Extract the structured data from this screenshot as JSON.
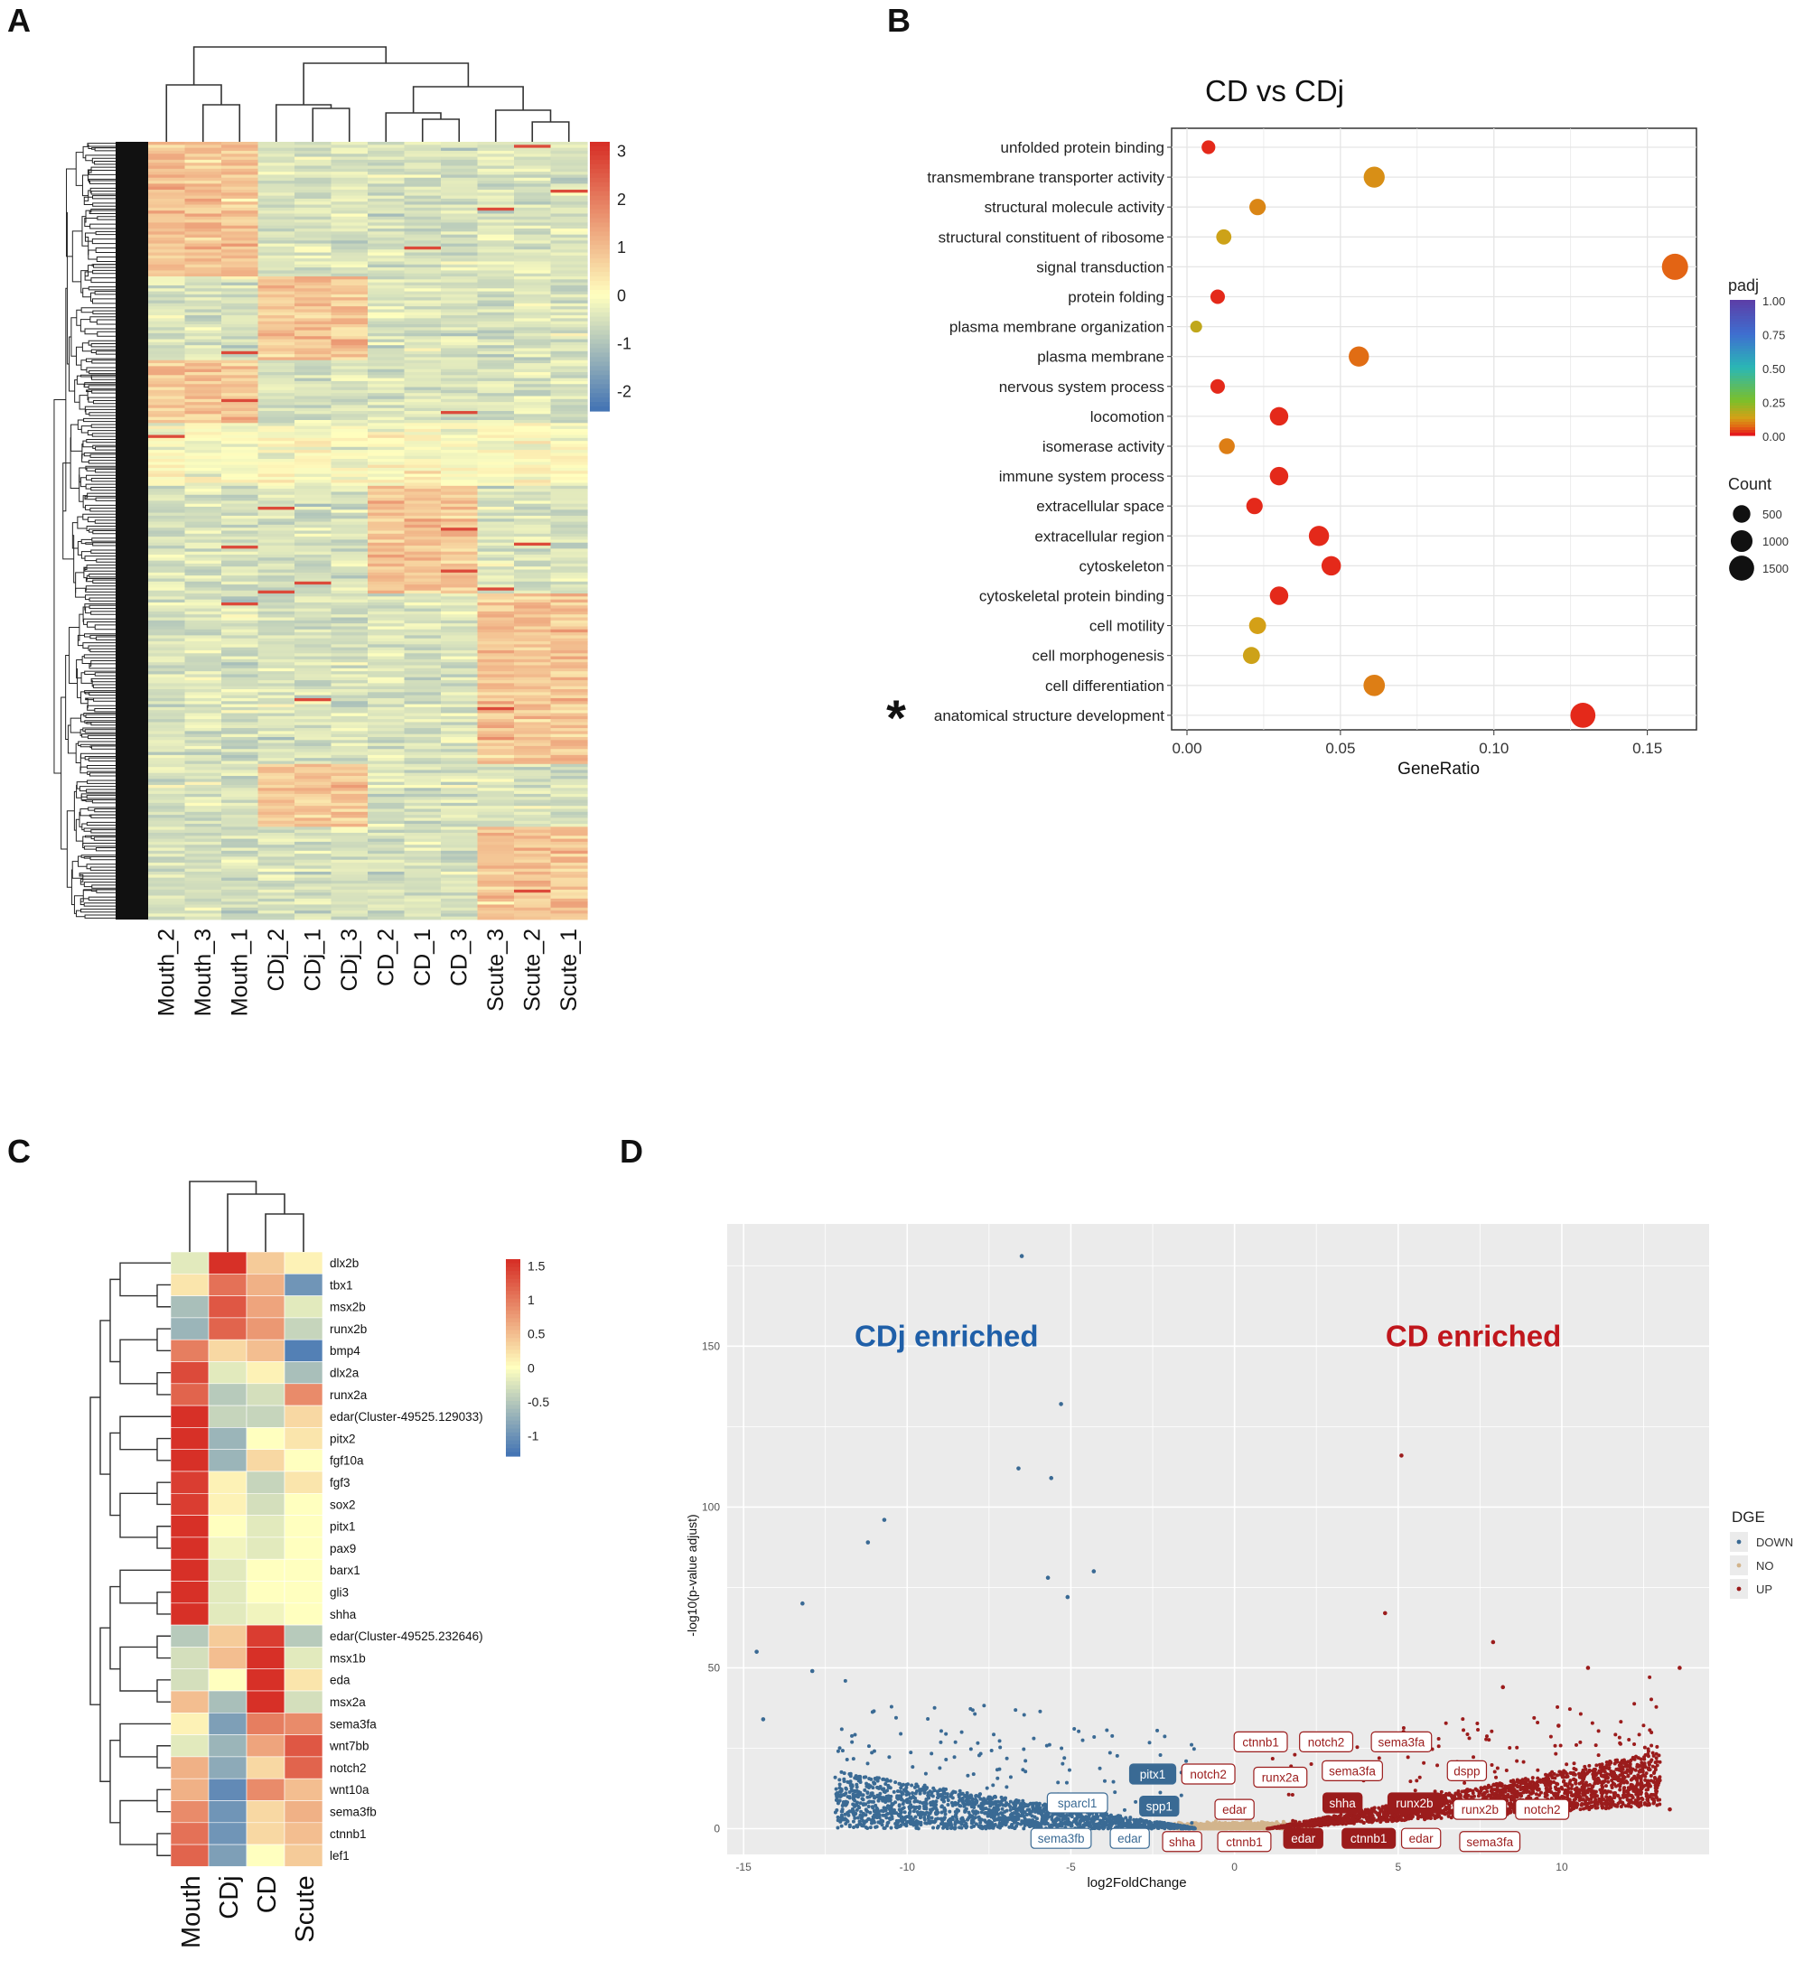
{
  "panels": {
    "A": {
      "letter": "A"
    },
    "B": {
      "letter": "B"
    },
    "C": {
      "letter": "C"
    },
    "D": {
      "letter": "D"
    }
  },
  "chart_data": [
    {
      "panel": "A",
      "type": "heatmap",
      "columns": [
        "Mouth_2",
        "Mouth_3",
        "Mouth_1",
        "CDj_2",
        "CDj_1",
        "CDj_3",
        "CD_2",
        "CD_1",
        "CD_3",
        "Scute_3",
        "Scute_2",
        "Scute_1"
      ],
      "legend_ticks": [
        3,
        2,
        1,
        0,
        -1,
        -2
      ],
      "scale": {
        "min": -2.4,
        "max": 3.2
      },
      "colors": {
        "low": "#4575b4",
        "mid": "#ffffbf",
        "high": "#d73027"
      },
      "row_dendrogram": true,
      "column_dendrogram": true
    },
    {
      "panel": "B",
      "type": "scatter",
      "title": "CD vs CDj",
      "xlabel": "GeneRatio",
      "xlim": [
        -0.005,
        0.166
      ],
      "xticks": [
        0.0,
        0.05,
        0.1,
        0.15
      ],
      "xtick_labels": [
        "0.00",
        "0.05",
        "0.10",
        "0.15"
      ],
      "categories": [
        "unfolded protein binding",
        "transmembrane transporter activity",
        "structural molecule activity",
        "structural constituent of ribosome",
        "signal transduction",
        "protein folding",
        "plasma membrane organization",
        "plasma membrane",
        "nervous system process",
        "locomotion",
        "isomerase activity",
        "immune system process",
        "extracellular space",
        "extracellular region",
        "cytoskeleton",
        "cytoskeletal protein binding",
        "cell motility",
        "cell morphogenesis",
        "cell differentiation",
        "anatomical structure development"
      ],
      "gene_ratio": [
        0.007,
        0.061,
        0.023,
        0.012,
        0.159,
        0.01,
        0.003,
        0.056,
        0.01,
        0.03,
        0.013,
        0.03,
        0.022,
        0.043,
        0.047,
        0.03,
        0.023,
        0.021,
        0.061,
        0.129
      ],
      "padj": [
        0.01,
        0.1,
        0.09,
        0.13,
        0.05,
        0.01,
        0.15,
        0.06,
        0.01,
        0.01,
        0.08,
        0.01,
        0.01,
        0.01,
        0.01,
        0.01,
        0.12,
        0.13,
        0.08,
        0.01
      ],
      "count": [
        200,
        900,
        400,
        300,
        1700,
        250,
        100,
        800,
        250,
        600,
        350,
        600,
        400,
        800,
        700,
        600,
        450,
        450,
        950,
        1500
      ],
      "marked_category": "anatomical structure development",
      "marker_symbol": "*",
      "legend_padj": {
        "title": "padj",
        "ticks": [
          "1.00",
          "0.75",
          "0.50",
          "0.25",
          "0.00"
        ]
      },
      "legend_count": {
        "title": "Count",
        "ticks": [
          "500",
          "1000",
          "1500"
        ],
        "values": [
          500,
          1000,
          1500
        ]
      },
      "grid": true
    },
    {
      "panel": "C",
      "type": "heatmap",
      "columns": [
        "Mouth",
        "CDj",
        "CD",
        "Scute"
      ],
      "rows": [
        "dlx2b",
        "tbx1",
        "msx2b",
        "runx2b",
        "bmp4",
        "dlx2a",
        "runx2a",
        "edar(Cluster-49525.129033)",
        "pitx2",
        "fgf10a",
        "fgf3",
        "sox2",
        "pitx1",
        "pax9",
        "barx1",
        "gli3",
        "shha",
        "edar(Cluster-49525.232646)",
        "msx1b",
        "eda",
        "msx2a",
        "sema3fa",
        "wnt7bb",
        "notch2",
        "wnt10a",
        "sema3fb",
        "ctnnb1",
        "lef1"
      ],
      "values": [
        [
          -0.2,
          1.6,
          0.4,
          0.1
        ],
        [
          0.2,
          1.1,
          0.6,
          -1.0
        ],
        [
          -0.6,
          1.3,
          0.7,
          -0.2
        ],
        [
          -0.7,
          1.2,
          0.8,
          -0.4
        ],
        [
          1.0,
          0.3,
          0.5,
          -1.2
        ],
        [
          1.4,
          -0.2,
          0.1,
          -0.6
        ],
        [
          1.2,
          -0.5,
          -0.3,
          0.9
        ],
        [
          1.6,
          -0.4,
          -0.4,
          0.3
        ],
        [
          1.6,
          -0.7,
          0.0,
          0.2
        ],
        [
          1.6,
          -0.7,
          0.3,
          0.0
        ],
        [
          1.5,
          0.1,
          -0.4,
          0.2
        ],
        [
          1.5,
          0.1,
          -0.3,
          0.0
        ],
        [
          1.6,
          0.0,
          -0.2,
          0.0
        ],
        [
          1.6,
          -0.1,
          -0.2,
          0.0
        ],
        [
          1.6,
          -0.2,
          0.0,
          0.0
        ],
        [
          1.6,
          -0.2,
          0.0,
          0.0
        ],
        [
          1.6,
          -0.2,
          -0.1,
          0.0
        ],
        [
          -0.5,
          0.4,
          1.5,
          -0.5
        ],
        [
          -0.3,
          0.5,
          1.6,
          -0.2
        ],
        [
          -0.3,
          0.0,
          1.6,
          0.2
        ],
        [
          0.5,
          -0.6,
          1.6,
          -0.3
        ],
        [
          0.1,
          -0.9,
          1.0,
          0.9
        ],
        [
          -0.2,
          -0.7,
          0.7,
          1.3
        ],
        [
          0.6,
          -0.8,
          0.3,
          1.2
        ],
        [
          0.6,
          -1.1,
          0.9,
          0.5
        ],
        [
          0.9,
          -1.0,
          0.3,
          0.6
        ],
        [
          1.1,
          -1.0,
          0.3,
          0.5
        ],
        [
          1.2,
          -0.9,
          0.0,
          0.4
        ]
      ],
      "legend_ticks": [
        1.5,
        1,
        0.5,
        0,
        -0.5,
        -1
      ],
      "scale": {
        "min": -1.3,
        "max": 1.6
      },
      "colors": {
        "low": "#4575b4",
        "mid": "#ffffbf",
        "high": "#d73027"
      }
    },
    {
      "panel": "D",
      "type": "scatter",
      "xlabel": "log2FoldChange",
      "ylabel": "-log10(p-value adjust)",
      "xlim": [
        -15.5,
        14.5
      ],
      "ylim": [
        -8,
        188
      ],
      "xticks": [
        -15,
        -10,
        -5,
        0,
        5,
        10
      ],
      "yticks": [
        0,
        50,
        100,
        150
      ],
      "annotations": {
        "left": "CDj enriched",
        "right": "CD enriched"
      },
      "colors": {
        "DOWN": "#3a6a94",
        "NO": "#d2b48c",
        "UP": "#9b1c1c",
        "left_text": "#1f5fa8",
        "right_text": "#c0161c"
      },
      "legend": {
        "title": "DGE",
        "entries": [
          "DOWN",
          "NO",
          "UP"
        ]
      },
      "highlight_points": [
        {
          "x": -6.5,
          "y": 178
        },
        {
          "x": -5.3,
          "y": 132
        },
        {
          "x": -6.6,
          "y": 112
        },
        {
          "x": -5.6,
          "y": 109
        },
        {
          "x": 5.1,
          "y": 116
        },
        {
          "x": -11.2,
          "y": 89
        },
        {
          "x": -10.7,
          "y": 96
        },
        {
          "x": -13.2,
          "y": 70
        },
        {
          "x": -14.6,
          "y": 55
        },
        {
          "x": 4.6,
          "y": 67
        },
        {
          "x": -5.7,
          "y": 78
        },
        {
          "x": -4.3,
          "y": 80
        },
        {
          "x": -5.1,
          "y": 72
        },
        {
          "x": 7.9,
          "y": 58
        },
        {
          "x": 13.6,
          "y": 50
        },
        {
          "x": 10.8,
          "y": 50
        },
        {
          "x": 9.9,
          "y": 32
        },
        {
          "x": -14.4,
          "y": 34
        },
        {
          "x": 13.3,
          "y": 6
        },
        {
          "x": -12.9,
          "y": 49
        },
        {
          "x": 8.2,
          "y": 44
        }
      ],
      "labels_down": [
        "sparcl1",
        "pitx1",
        "spp1",
        "sema3fb",
        "edar"
      ],
      "labels_up": [
        "ctnnb1",
        "notch2",
        "sema3fa",
        "notch2",
        "runx2a",
        "sema3fa",
        "dspp",
        "edar",
        "shha",
        "runx2b",
        "runx2b",
        "notch2",
        "shha",
        "ctnnb1",
        "edar",
        "ctnnb1",
        "edar",
        "sema3fa"
      ]
    }
  ]
}
